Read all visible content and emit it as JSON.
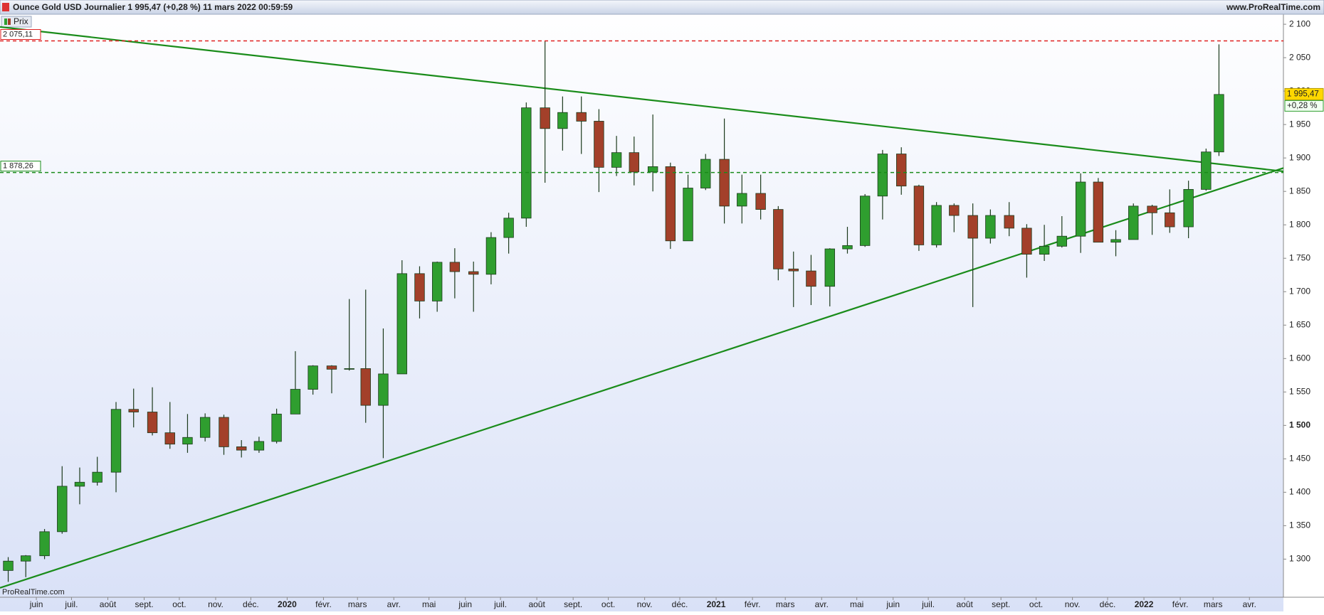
{
  "chart_data": {
    "type": "candlestick",
    "title": "Ounce Gold USD Journalier 1 995,47 (+0,28 %) 11 mars 2022 00:59:59",
    "site": "www.ProRealTime.com",
    "watermark": "ProRealTime.com",
    "series": [
      {
        "name": "Prix",
        "up_color": "#2f9e2f",
        "down_color": "#a3402a",
        "x": [
          7,
          22,
          38,
          53,
          68,
          83,
          99,
          114,
          130,
          145,
          160,
          175,
          191,
          206,
          221,
          236,
          252,
          267,
          283,
          298,
          312,
          327,
          343,
          358,
          373,
          388,
          404,
          419,
          434,
          449,
          465,
          480,
          496,
          511,
          526,
          541,
          557,
          572,
          587,
          602,
          618,
          633,
          649,
          664,
          677,
          692,
          708,
          723,
          738,
          753,
          769,
          784,
          799,
          814,
          830,
          845,
          861,
          876,
          891,
          906,
          922,
          937,
          952,
          967,
          983,
          998,
          1014,
          1029,
          1040
        ],
        "open": [
          1283,
          1297,
          1305,
          1341,
          1409,
          1415,
          1430,
          1524,
          1520,
          1489,
          1472,
          1482,
          1512,
          1468,
          1463,
          1476,
          1517,
          1554,
          1589,
          1584,
          1585,
          1530,
          1577,
          1727,
          1686,
          1744,
          1730,
          1726,
          1781,
          1810,
          1975,
          1944,
          1968,
          1955,
          1886,
          1908,
          1879,
          1887,
          1776,
          1855,
          1898,
          1828,
          1847,
          1823,
          1734,
          1731,
          1708,
          1764,
          1769,
          1843,
          1906,
          1858,
          1770,
          1829,
          1814,
          1780,
          1814,
          1795,
          1756,
          1768,
          1783,
          1864,
          1774,
          1778,
          1828,
          1818,
          1797,
          1853,
          1909
        ],
        "high": [
          1303,
          1306,
          1345,
          1439,
          1437,
          1453,
          1535,
          1555,
          1557,
          1535,
          1517,
          1518,
          1516,
          1478,
          1483,
          1525,
          1611,
          1590,
          1590,
          1689,
          1703,
          1645,
          1747,
          1738,
          1745,
          1765,
          1745,
          1789,
          1818,
          1983,
          2075,
          1992,
          1992,
          1973,
          1933,
          1932,
          1965,
          1893,
          1875,
          1906,
          1959,
          1875,
          1875,
          1828,
          1760,
          1755,
          1765,
          1797,
          1846,
          1912,
          1916,
          1860,
          1834,
          1832,
          1832,
          1823,
          1834,
          1801,
          1800,
          1813,
          1877,
          1870,
          1792,
          1832,
          1830,
          1853,
          1866,
          1914,
          2070
        ],
        "low": [
          1266,
          1273,
          1300,
          1338,
          1382,
          1410,
          1400,
          1497,
          1485,
          1465,
          1459,
          1476,
          1456,
          1452,
          1459,
          1473,
          1517,
          1546,
          1548,
          1582,
          1504,
          1451,
          1577,
          1660,
          1670,
          1690,
          1670,
          1711,
          1757,
          1797,
          1863,
          1911,
          1906,
          1849,
          1873,
          1859,
          1850,
          1764,
          1776,
          1852,
          1802,
          1802,
          1808,
          1717,
          1677,
          1680,
          1678,
          1757,
          1767,
          1808,
          1845,
          1761,
          1766,
          1789,
          1677,
          1772,
          1783,
          1721,
          1746,
          1766,
          1758,
          1774,
          1753,
          1778,
          1785,
          1788,
          1780,
          1851,
          1903
        ],
        "close": [
          1297,
          1305,
          1341,
          1409,
          1415,
          1430,
          1524,
          1520,
          1489,
          1472,
          1482,
          1512,
          1468,
          1463,
          1476,
          1517,
          1554,
          1589,
          1584,
          1585,
          1530,
          1577,
          1727,
          1686,
          1744,
          1730,
          1726,
          1781,
          1810,
          1975,
          1944,
          1968,
          1955,
          1886,
          1908,
          1879,
          1887,
          1776,
          1855,
          1898,
          1828,
          1847,
          1823,
          1734,
          1731,
          1708,
          1764,
          1769,
          1843,
          1906,
          1858,
          1770,
          1829,
          1814,
          1780,
          1814,
          1795,
          1756,
          1768,
          1783,
          1864,
          1774,
          1778,
          1828,
          1818,
          1797,
          1853,
          1909,
          1995
        ]
      }
    ],
    "xlim": [
      0,
      1095
    ],
    "xticks": [
      {
        "value": 31,
        "label": "juin"
      },
      {
        "value": 61,
        "label": "juil."
      },
      {
        "value": 92,
        "label": "août"
      },
      {
        "value": 123,
        "label": "sept."
      },
      {
        "value": 153,
        "label": "oct."
      },
      {
        "value": 184,
        "label": "nov."
      },
      {
        "value": 214,
        "label": "déc."
      },
      {
        "value": 245,
        "label": "2020",
        "bold": true
      },
      {
        "value": 276,
        "label": "févr."
      },
      {
        "value": 305,
        "label": "mars"
      },
      {
        "value": 336,
        "label": "avr."
      },
      {
        "value": 366,
        "label": "mai"
      },
      {
        "value": 397,
        "label": "juin"
      },
      {
        "value": 427,
        "label": "juil."
      },
      {
        "value": 458,
        "label": "août"
      },
      {
        "value": 489,
        "label": "sept."
      },
      {
        "value": 519,
        "label": "oct."
      },
      {
        "value": 550,
        "label": "nov."
      },
      {
        "value": 580,
        "label": "déc."
      },
      {
        "value": 611,
        "label": "2021",
        "bold": true
      },
      {
        "value": 642,
        "label": "févr."
      },
      {
        "value": 670,
        "label": "mars"
      },
      {
        "value": 701,
        "label": "avr."
      },
      {
        "value": 731,
        "label": "mai"
      },
      {
        "value": 762,
        "label": "juin"
      },
      {
        "value": 792,
        "label": "juil."
      },
      {
        "value": 823,
        "label": "août"
      },
      {
        "value": 854,
        "label": "sept."
      },
      {
        "value": 884,
        "label": "oct."
      },
      {
        "value": 915,
        "label": "nov."
      },
      {
        "value": 945,
        "label": "déc."
      },
      {
        "value": 976,
        "label": "2022",
        "bold": true
      },
      {
        "value": 1007,
        "label": "févr."
      },
      {
        "value": 1035,
        "label": "mars"
      },
      {
        "value": 1066,
        "label": "avr."
      }
    ],
    "ylim": [
      1243,
      2115
    ],
    "yticks": [
      {
        "value": 1300,
        "label": "1 300"
      },
      {
        "value": 1350,
        "label": "1 350"
      },
      {
        "value": 1400,
        "label": "1 400"
      },
      {
        "value": 1450,
        "label": "1 450"
      },
      {
        "value": 1500,
        "label": "1 500",
        "bold": true
      },
      {
        "value": 1550,
        "label": "1 550"
      },
      {
        "value": 1600,
        "label": "1 600"
      },
      {
        "value": 1650,
        "label": "1 650"
      },
      {
        "value": 1700,
        "label": "1 700"
      },
      {
        "value": 1750,
        "label": "1 750"
      },
      {
        "value": 1800,
        "label": "1 800"
      },
      {
        "value": 1850,
        "label": "1 850"
      },
      {
        "value": 1900,
        "label": "1 900"
      },
      {
        "value": 1950,
        "label": "1 950"
      },
      {
        "value": 2000,
        "label": "2 000"
      },
      {
        "value": 2050,
        "label": "2 050"
      },
      {
        "value": 2100,
        "label": "2 100"
      }
    ],
    "hlines": [
      {
        "value": 2075.11,
        "label": "2 075,11",
        "color": "#e02020"
      },
      {
        "value": 1878.26,
        "label": "1 878,26",
        "color": "#1a8c1a"
      }
    ],
    "trendlines": [
      {
        "x": [
          0,
          1095
        ],
        "y": [
          2096,
          1880
        ],
        "color": "#1a8c1a"
      },
      {
        "x": [
          0,
          1095
        ],
        "y": [
          1257,
          1885
        ],
        "color": "#1a8c1a"
      }
    ],
    "last_price": {
      "value": 1995.47,
      "label": "1 995,47"
    },
    "change": {
      "value": 0.28,
      "label": "+0,28 %"
    }
  }
}
